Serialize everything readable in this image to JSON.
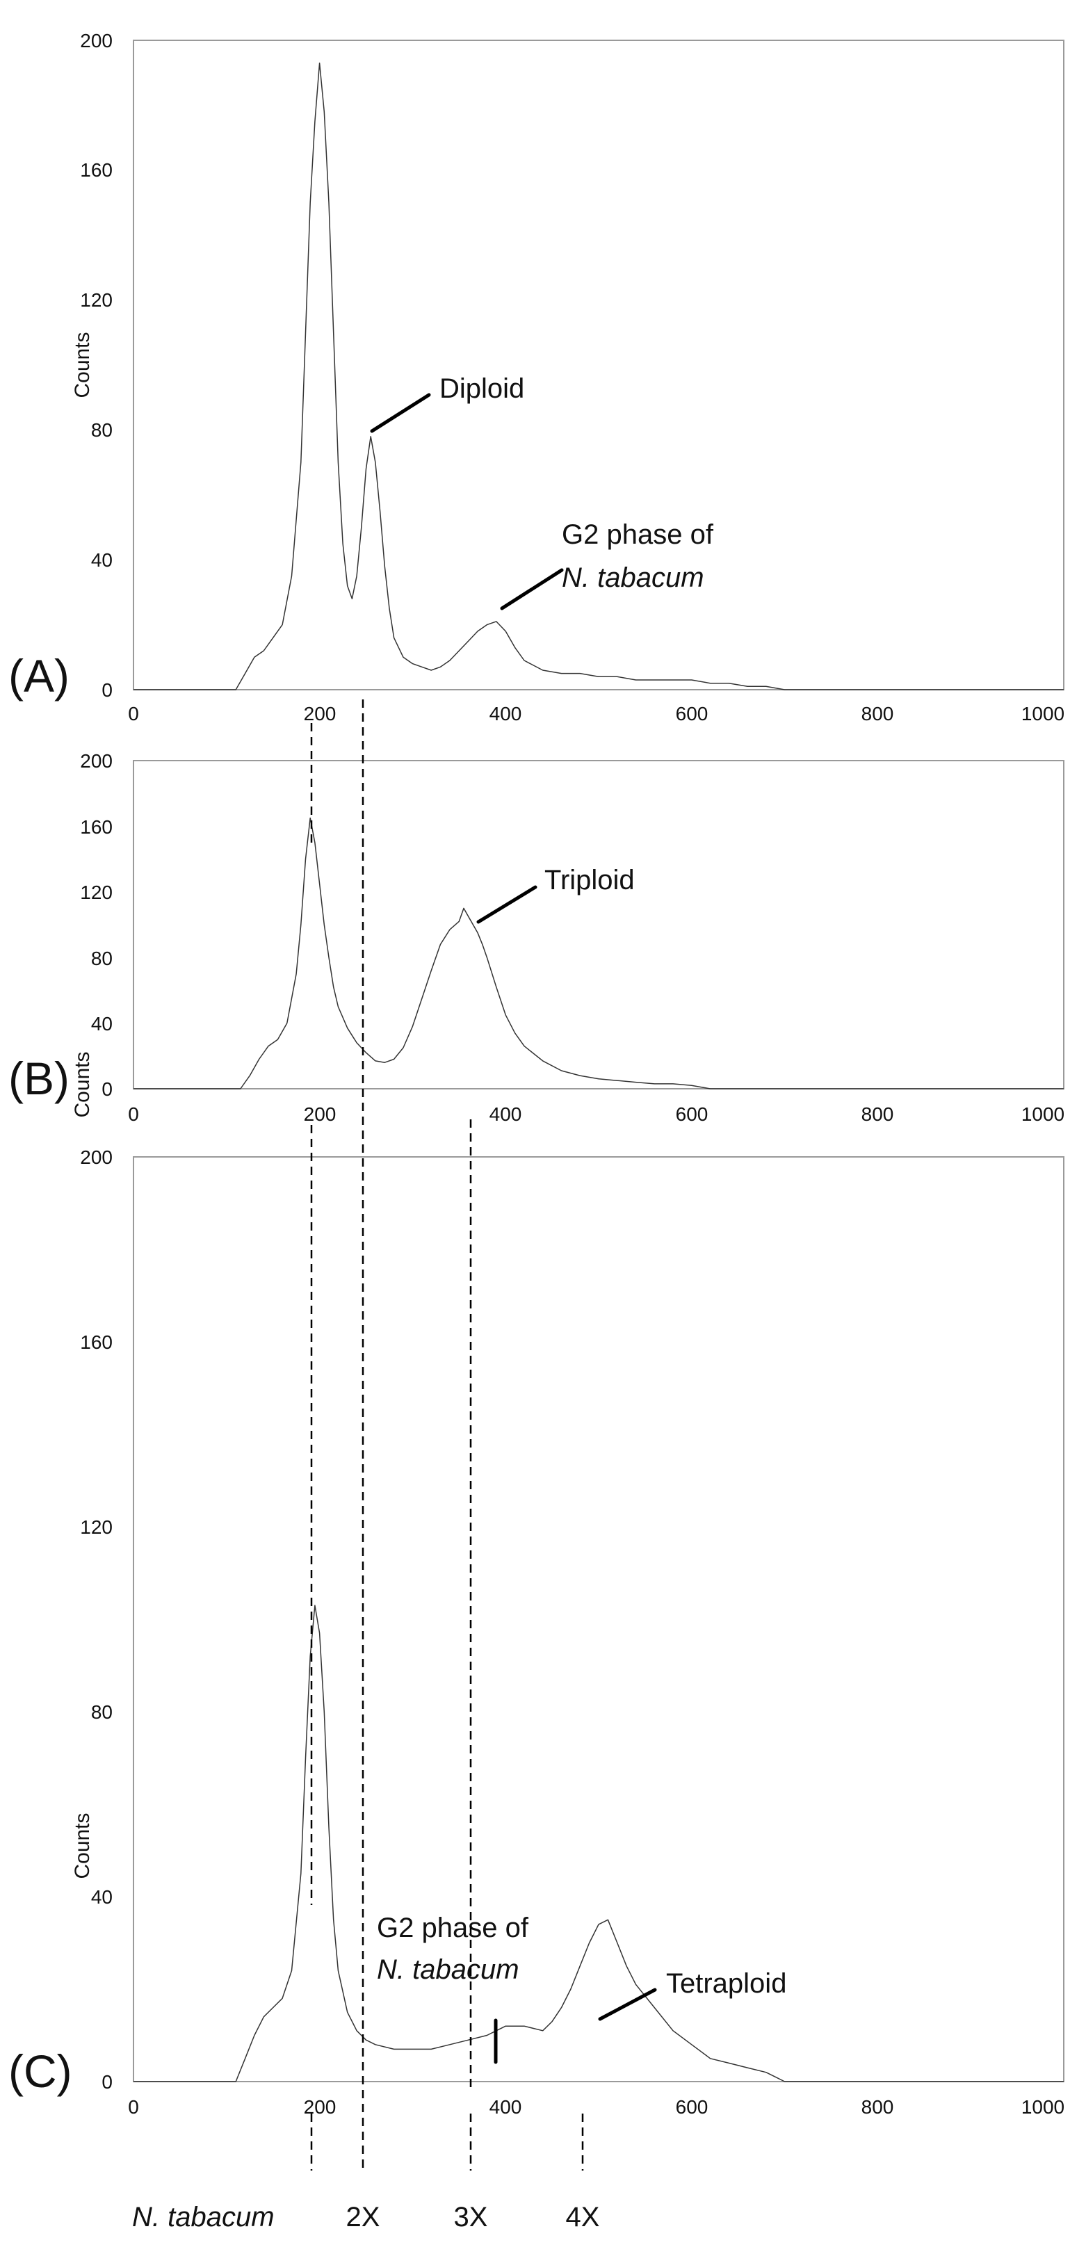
{
  "chart_data": [
    {
      "type": "line",
      "panel_label": "(A)",
      "ylabel": "Counts",
      "xlim": [
        0,
        1000
      ],
      "ylim": [
        0,
        200
      ],
      "xticks": [
        "0",
        "200",
        "400",
        "600",
        "800",
        "1000"
      ],
      "yticks": [
        "0",
        "40",
        "80",
        "120",
        "160",
        "200"
      ],
      "grid": false,
      "series": [
        {
          "x": [
            0,
            110,
            120,
            130,
            140,
            150,
            160,
            170,
            180,
            185,
            190,
            195,
            200,
            205,
            210,
            215,
            220,
            225,
            230,
            235,
            240,
            245,
            250,
            255,
            260,
            265,
            270,
            275,
            280,
            290,
            300,
            310,
            320,
            330,
            340,
            350,
            360,
            370,
            380,
            390,
            400,
            410,
            420,
            440,
            460,
            480,
            500,
            520,
            540,
            560,
            580,
            600,
            620,
            640,
            660,
            680,
            700,
            750,
            1000
          ],
          "y": [
            0,
            0,
            5,
            10,
            12,
            16,
            20,
            35,
            70,
            110,
            150,
            175,
            193,
            178,
            150,
            110,
            70,
            45,
            32,
            28,
            35,
            50,
            68,
            78,
            70,
            55,
            38,
            25,
            16,
            10,
            8,
            7,
            6,
            7,
            9,
            12,
            15,
            18,
            20,
            21,
            18,
            13,
            9,
            6,
            5,
            5,
            4,
            4,
            3,
            3,
            3,
            3,
            2,
            2,
            1,
            1,
            0,
            0,
            0
          ]
        }
      ],
      "annotations": [
        {
          "text": "Diploid"
        },
        {
          "text": "G2 phase of",
          "text2": "N. tabacum"
        }
      ]
    },
    {
      "type": "line",
      "panel_label": "(B)",
      "ylabel": "Counts",
      "xlim": [
        0,
        1000
      ],
      "ylim": [
        0,
        200
      ],
      "xticks": [
        "0",
        "200",
        "400",
        "600",
        "800",
        "1000"
      ],
      "yticks": [
        "0",
        "40",
        "80",
        "120",
        "160",
        "200"
      ],
      "grid": false,
      "series": [
        {
          "x": [
            0,
            115,
            125,
            135,
            145,
            155,
            165,
            175,
            180,
            185,
            190,
            195,
            200,
            205,
            210,
            215,
            220,
            230,
            240,
            250,
            260,
            270,
            280,
            290,
            300,
            310,
            320,
            330,
            340,
            350,
            355,
            360,
            365,
            370,
            375,
            380,
            390,
            400,
            410,
            420,
            440,
            460,
            480,
            500,
            520,
            540,
            560,
            580,
            600,
            610,
            620,
            1000
          ],
          "y": [
            0,
            0,
            8,
            18,
            26,
            30,
            40,
            70,
            100,
            140,
            165,
            150,
            125,
            100,
            80,
            62,
            50,
            37,
            28,
            22,
            17,
            16,
            18,
            25,
            38,
            55,
            72,
            88,
            97,
            102,
            110,
            105,
            100,
            95,
            88,
            80,
            62,
            45,
            34,
            26,
            17,
            11,
            8,
            6,
            5,
            4,
            3,
            3,
            2,
            1,
            0,
            0
          ]
        }
      ],
      "annotations": [
        {
          "text": "Triploid"
        }
      ]
    },
    {
      "type": "line",
      "panel_label": "(C)",
      "ylabel": "Counts",
      "xlim": [
        0,
        1000
      ],
      "ylim": [
        0,
        200
      ],
      "xticks": [
        "0",
        "200",
        "400",
        "600",
        "800",
        "1000"
      ],
      "yticks": [
        "0",
        "40",
        "80",
        "120",
        "160",
        "200"
      ],
      "grid": false,
      "series": [
        {
          "x": [
            0,
            110,
            120,
            130,
            140,
            150,
            160,
            170,
            180,
            185,
            190,
            195,
            200,
            205,
            210,
            215,
            220,
            230,
            240,
            250,
            260,
            280,
            300,
            320,
            340,
            360,
            380,
            400,
            420,
            440,
            450,
            460,
            470,
            480,
            490,
            500,
            510,
            520,
            530,
            540,
            560,
            580,
            600,
            620,
            640,
            660,
            680,
            690,
            700,
            1000
          ],
          "y": [
            0,
            0,
            5,
            10,
            14,
            16,
            18,
            24,
            45,
            70,
            92,
            103,
            97,
            80,
            55,
            35,
            24,
            15,
            11,
            9,
            8,
            7,
            7,
            7,
            8,
            9,
            10,
            12,
            12,
            11,
            13,
            16,
            20,
            25,
            30,
            34,
            35,
            30,
            25,
            21,
            16,
            11,
            8,
            5,
            4,
            3,
            2,
            1,
            0,
            0
          ]
        }
      ],
      "annotations": [
        {
          "text": "G2 phase of",
          "text2": "N. tabacum"
        },
        {
          "text": "Tetraploid"
        }
      ]
    }
  ],
  "reference_lines": [
    {
      "label": "N. tabacum",
      "x": 200
    },
    {
      "label": "2X",
      "x": 257
    },
    {
      "label": "3X",
      "x": 377
    },
    {
      "label": "4X",
      "x": 504
    }
  ]
}
